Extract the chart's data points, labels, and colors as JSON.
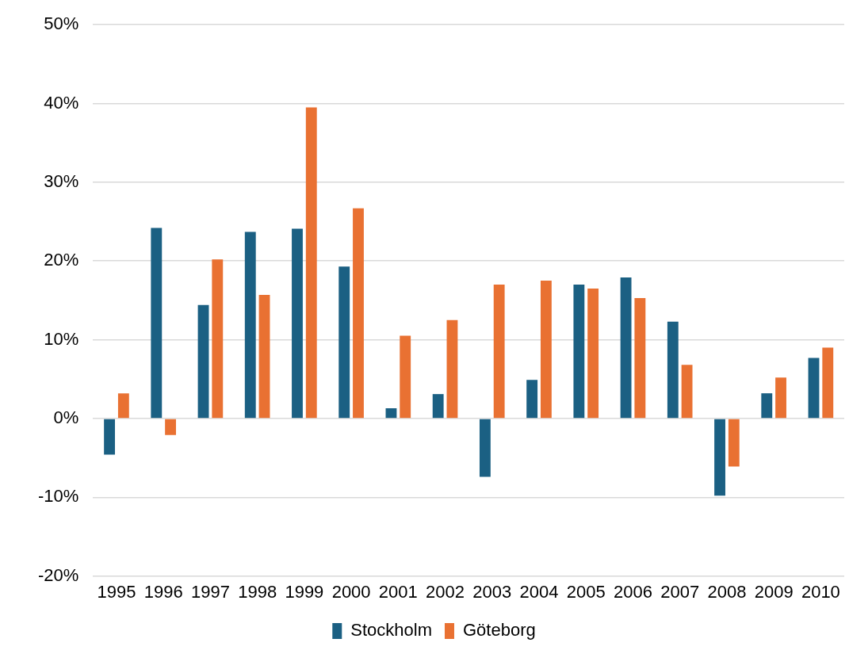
{
  "chart_data": {
    "type": "bar",
    "categories": [
      "1995",
      "1996",
      "1997",
      "1998",
      "1999",
      "2000",
      "2001",
      "2002",
      "2003",
      "2004",
      "2005",
      "2006",
      "2007",
      "2008",
      "2009",
      "2010"
    ],
    "series": [
      {
        "name": "Stockholm",
        "color": "#1b6083",
        "values": [
          -4.6,
          24.2,
          14.4,
          23.7,
          24.1,
          19.3,
          1.3,
          3.1,
          -7.4,
          4.9,
          17.0,
          17.9,
          12.3,
          -9.8,
          3.2,
          7.7
        ]
      },
      {
        "name": "Göteborg",
        "color": "#e97132",
        "values": [
          3.2,
          -2.1,
          20.2,
          15.7,
          39.5,
          26.7,
          10.5,
          12.5,
          17.0,
          17.5,
          16.5,
          15.3,
          6.8,
          -6.1,
          5.2,
          9.0
        ]
      }
    ],
    "ylim": [
      -20,
      50
    ],
    "yticks": [
      {
        "value": -20,
        "label": "-20%"
      },
      {
        "value": -10,
        "label": "-10%"
      },
      {
        "value": 0,
        "label": "0%"
      },
      {
        "value": 10,
        "label": "10%"
      },
      {
        "value": 20,
        "label": "20%"
      },
      {
        "value": 30,
        "label": "30%"
      },
      {
        "value": 40,
        "label": "40%"
      },
      {
        "value": 50,
        "label": "50%"
      }
    ],
    "grid": "y",
    "legend": "bottom"
  }
}
